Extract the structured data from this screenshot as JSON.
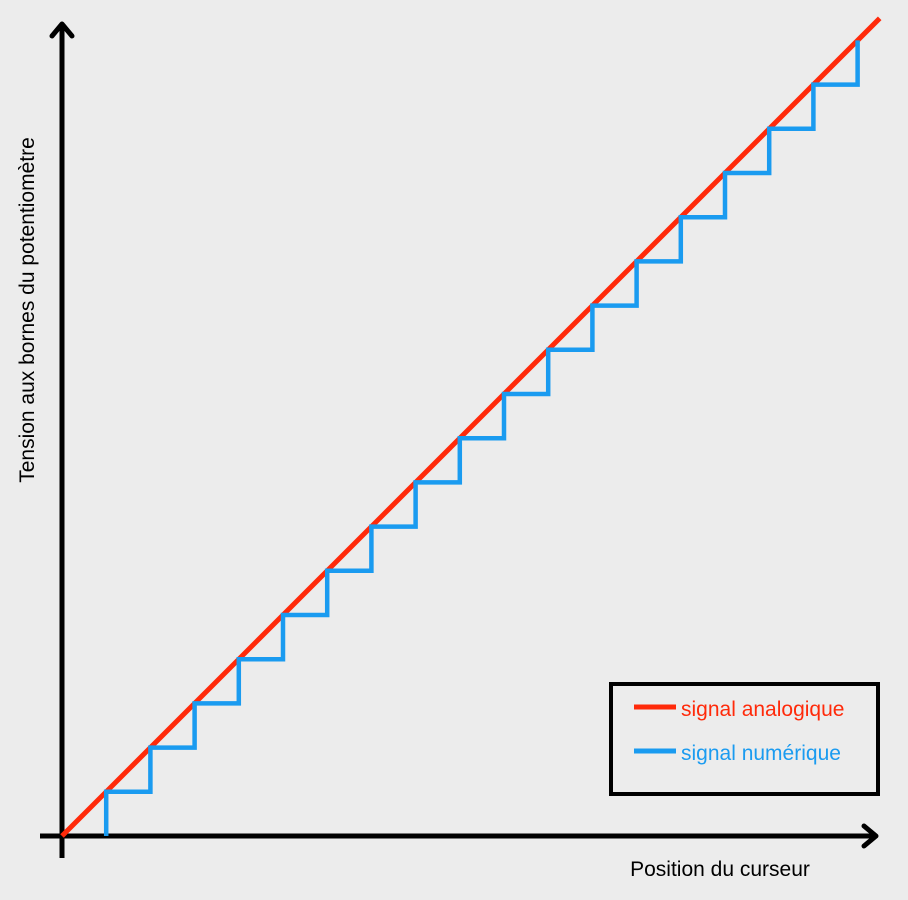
{
  "chart_data": {
    "type": "line",
    "title": "",
    "xlabel": "Position du curseur",
    "ylabel": "Tension aux bornes du potentiomètre",
    "xlim": [
      0,
      18.5
    ],
    "ylim": [
      0,
      18.5
    ],
    "grid": false,
    "legend_position": "bottom-right",
    "series": [
      {
        "name": "signal analogique",
        "color": "#ff2a0a",
        "style": "linear",
        "x": [
          0,
          18.5
        ],
        "y": [
          0,
          18.5
        ]
      },
      {
        "name": "signal numérique",
        "color": "#1a9bf0",
        "style": "step",
        "x": [
          1,
          2,
          3,
          4,
          5,
          6,
          7,
          8,
          9,
          10,
          11,
          12,
          13,
          14,
          15,
          16,
          17,
          18
        ],
        "y": [
          1,
          2,
          3,
          4,
          5,
          6,
          7,
          8,
          9,
          10,
          11,
          12,
          13,
          14,
          15,
          16,
          17,
          18
        ]
      }
    ]
  }
}
